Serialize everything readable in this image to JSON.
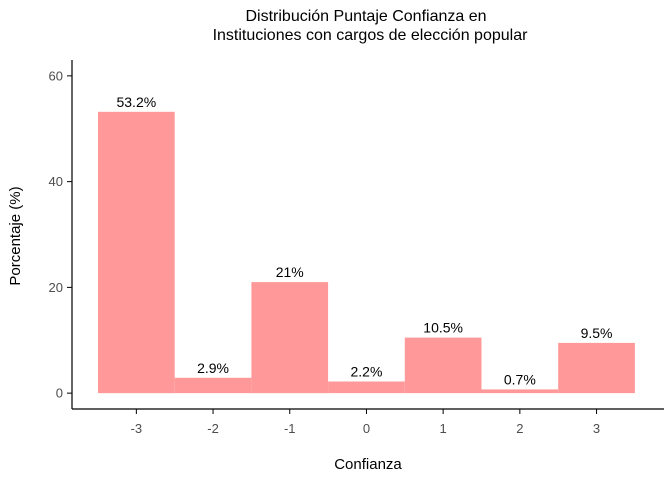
{
  "chart_data": {
    "type": "bar",
    "title": [
      "Distribución Puntaje Confianza en",
      "Instituciones con cargos de elección popular"
    ],
    "xlabel": "Confianza",
    "ylabel": "Porcentaje (%)",
    "categories": [
      "-3",
      "-2",
      "-1",
      "0",
      "1",
      "2",
      "3"
    ],
    "values": [
      53.2,
      2.9,
      21,
      2.2,
      10.5,
      0.7,
      9.5
    ],
    "data_labels": [
      "53.2%",
      "2.9%",
      "21%",
      "2.2%",
      "10.5%",
      "0.7%",
      "9.5%"
    ],
    "ylim": [
      -3,
      63
    ],
    "yticks": [
      0,
      20,
      40,
      60
    ],
    "bar_color": "#ff9999",
    "grid": false,
    "legend": "none"
  }
}
